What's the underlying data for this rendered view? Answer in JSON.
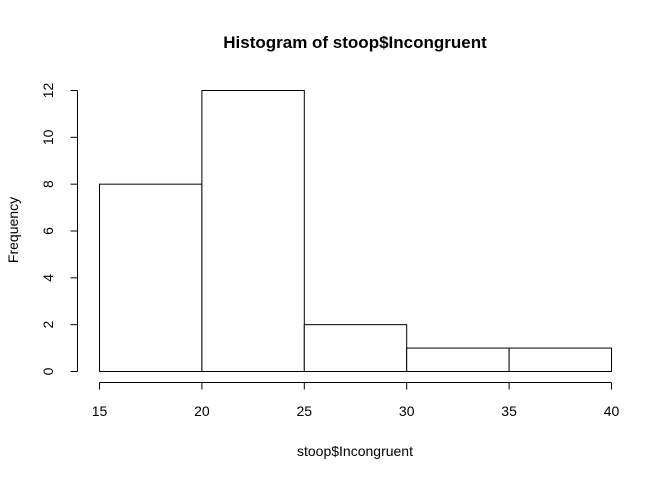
{
  "chart_data": {
    "type": "bar",
    "title": "Histogram of stoop$Incongruent",
    "xlabel": "stoop$Incongruent",
    "ylabel": "Frequency",
    "bins": [
      {
        "from": 15,
        "to": 20,
        "count": 8
      },
      {
        "from": 20,
        "to": 25,
        "count": 12
      },
      {
        "from": 25,
        "to": 30,
        "count": 2
      },
      {
        "from": 30,
        "to": 35,
        "count": 1
      },
      {
        "from": 35,
        "to": 40,
        "count": 1
      }
    ],
    "xlim": [
      15,
      40
    ],
    "ylim": [
      0,
      12
    ],
    "x_ticks": [
      15,
      20,
      25,
      30,
      35,
      40
    ],
    "y_ticks": [
      0,
      2,
      4,
      6,
      8,
      10,
      12
    ],
    "grid": false,
    "legend": "none"
  }
}
